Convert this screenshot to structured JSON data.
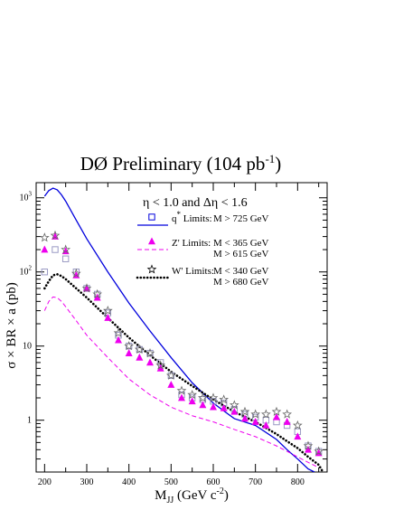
{
  "chart_data": {
    "type": "scatter",
    "title": "DØ Preliminary (104 pb",
    "title_sup": "-1",
    "title_end": ")",
    "xlabel": "M",
    "xlabel_sub": "JJ",
    "xlabel_unit": "(GeV c",
    "xlabel_unit_sup": "-2",
    "xlabel_end": ")",
    "ylabel": "σ × BR  × a (pb)",
    "xlim": [
      180,
      870
    ],
    "ylim": [
      0.2,
      1600
    ],
    "yscale": "log",
    "x_ticks": [
      200,
      300,
      400,
      500,
      600,
      700,
      800
    ],
    "y_ticks": [
      {
        "value": 1,
        "label": "1"
      },
      {
        "value": 10,
        "label": "10"
      },
      {
        "value": 100,
        "label": "10",
        "sup": "2"
      },
      {
        "value": 1000,
        "label": "10",
        "sup": "3"
      }
    ],
    "annotation": "η < 1.0 and Δη < 1.6",
    "legend": [
      {
        "key": "qstar",
        "name_base": "q",
        "name_sup": "*",
        "name_suffix": " Limits:",
        "limits": [
          "M > 725 GeV"
        ]
      },
      {
        "key": "zprime",
        "name_base": "Z'",
        "name_sup": "",
        "name_suffix": " Limits:",
        "limits": [
          "M < 365 GeV",
          "M > 615 GeV"
        ]
      },
      {
        "key": "wprime",
        "name_base": "W'",
        "name_sup": "",
        "name_suffix": " Limits:",
        "limits": [
          "M < 340 GeV",
          "M > 680 GeV"
        ]
      }
    ],
    "series": [
      {
        "key": "qstar_limit",
        "marker": "square",
        "color": "#9a9ac4",
        "x": [
          200,
          225,
          250,
          275,
          300,
          325,
          350,
          375,
          400,
          425,
          450,
          475,
          500,
          525,
          550,
          575,
          600,
          625,
          650,
          675,
          700,
          725,
          750,
          775,
          800,
          825,
          850
        ],
        "y": [
          100,
          200,
          150,
          100,
          60,
          50,
          28,
          14,
          10,
          9,
          8,
          6,
          4,
          2.2,
          2.0,
          1.9,
          1.8,
          1.7,
          1.4,
          1.2,
          1.1,
          1.0,
          0.95,
          0.85,
          0.7,
          0.45,
          0.38
        ]
      },
      {
        "key": "zprime_limit",
        "marker": "triangle",
        "color": "#ee00ee",
        "x": [
          200,
          225,
          250,
          275,
          300,
          325,
          350,
          375,
          400,
          425,
          450,
          475,
          500,
          525,
          550,
          575,
          600,
          625,
          650,
          675,
          700,
          725,
          750,
          775,
          800,
          825,
          850
        ],
        "y": [
          200,
          300,
          190,
          90,
          60,
          45,
          24,
          12,
          8,
          7,
          6,
          5,
          3,
          2,
          1.8,
          1.6,
          1.5,
          1.45,
          1.3,
          1.05,
          0.95,
          0.85,
          1.1,
          0.95,
          0.6,
          0.4,
          0.36
        ]
      },
      {
        "key": "wprime_limit",
        "marker": "star",
        "color": "#666666",
        "x": [
          200,
          225,
          250,
          275,
          300,
          325,
          350,
          375,
          400,
          425,
          450,
          475,
          500,
          525,
          550,
          575,
          600,
          625,
          650,
          675,
          700,
          725,
          750,
          775,
          800,
          825,
          850
        ],
        "y": [
          290,
          310,
          200,
          95,
          60,
          50,
          30,
          15,
          10,
          9,
          8,
          5.5,
          4,
          2.5,
          2.2,
          2.0,
          2.0,
          1.9,
          1.6,
          1.3,
          1.2,
          1.2,
          1.3,
          1.2,
          0.85,
          0.45,
          0.38
        ]
      },
      {
        "key": "qstar_theory",
        "style": "solid",
        "color": "#0000dd",
        "x": [
          200,
          210,
          220,
          230,
          240,
          250,
          275,
          300,
          350,
          400,
          450,
          500,
          550,
          600,
          650,
          700,
          750,
          775,
          800,
          825,
          840
        ],
        "y": [
          1050,
          1250,
          1350,
          1280,
          1100,
          900,
          500,
          280,
          100,
          38,
          16,
          7,
          3.2,
          1.7,
          1.05,
          0.85,
          0.55,
          0.4,
          0.3,
          0.22,
          0.2
        ]
      },
      {
        "key": "zprime_theory",
        "style": "dashed",
        "color": "#ee00ee",
        "x": [
          200,
          210,
          220,
          230,
          240,
          250,
          275,
          300,
          350,
          400,
          450,
          500,
          550,
          600,
          650,
          700,
          750,
          775,
          800,
          825,
          850
        ],
        "y": [
          30,
          40,
          46,
          45,
          40,
          34,
          22,
          14,
          7,
          3.6,
          2.2,
          1.5,
          1.15,
          0.95,
          0.75,
          0.6,
          0.45,
          0.38,
          0.32,
          0.27,
          0.23
        ]
      },
      {
        "key": "wprime_theory",
        "style": "dotted",
        "color": "#000000",
        "x": [
          200,
          210,
          220,
          230,
          240,
          250,
          275,
          300,
          350,
          400,
          450,
          500,
          550,
          600,
          650,
          700,
          750,
          775,
          800,
          825,
          850,
          860
        ],
        "y": [
          60,
          75,
          90,
          93,
          88,
          80,
          60,
          45,
          24,
          13,
          7.5,
          4.5,
          2.9,
          1.9,
          1.3,
          0.95,
          0.65,
          0.52,
          0.42,
          0.32,
          0.25,
          0.2
        ]
      }
    ]
  }
}
